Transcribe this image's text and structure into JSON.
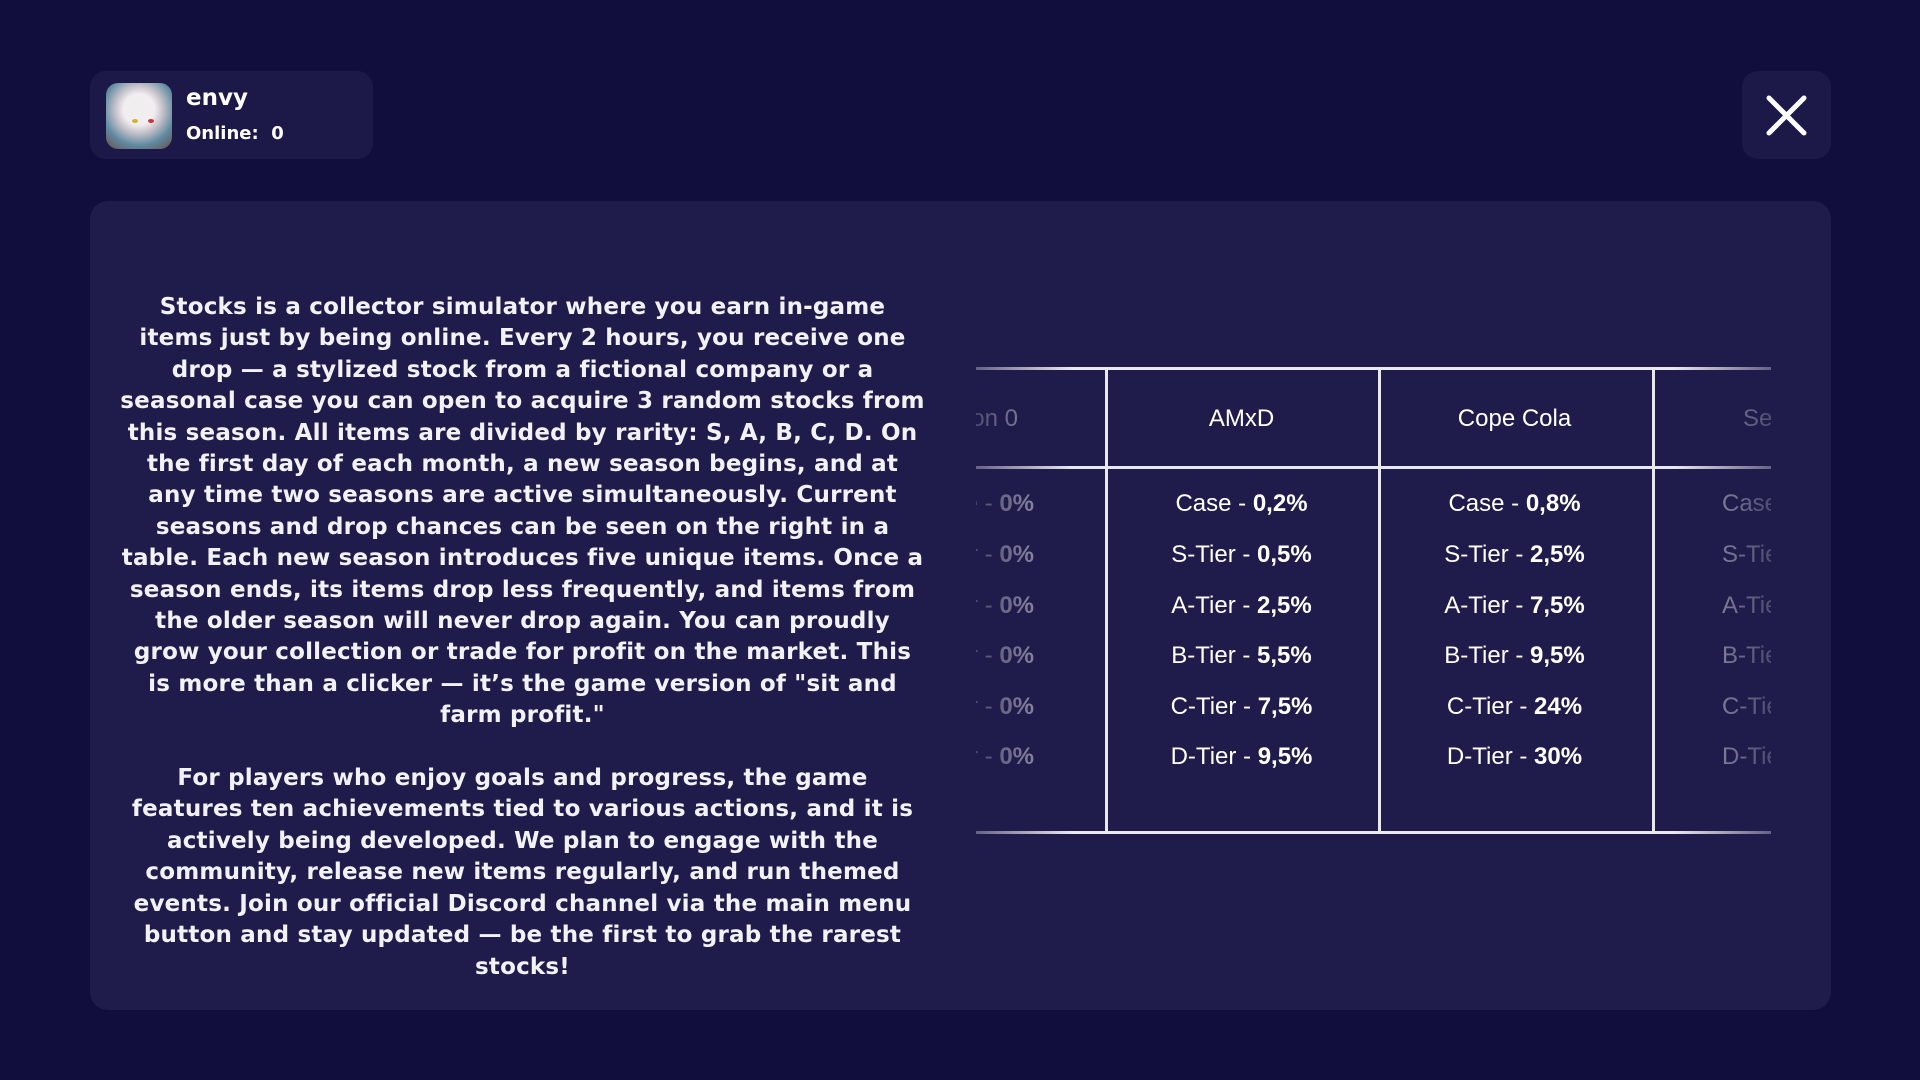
{
  "profile": {
    "name": "envy",
    "online_label": "Online:",
    "online_value": "0",
    "avatar_icon": "anime-avatar"
  },
  "close_icon": "close-x-icon",
  "description": [
    "Stocks is a collector simulator where you earn in-game items just by being online. Every 2 hours, you receive one drop — a stylized stock from a fictional company or a seasonal case you can open to acquire 3 random stocks from this season. All items are divided by rarity: S, A, B, C, D. On the first day of each month, a new season begins, and at any time two seasons are active simultaneously. Current seasons and drop chances can be seen on the right in a table. Each new season introduces five unique items. Once a season ends, its items drop less frequently, and items from the older season will never drop again. You can proudly grow your collection or trade for profit on the market. This is more than a clicker — it’s the game version of \"sit and farm profit.\"",
    "For players who enjoy goals and progress, the game features ten achievements tied to various actions, and it is actively being developed. We plan to engage with the community, release new items regularly, and run themed events. Join our official Discord channel via the main menu button and stay updated — be the first to grab the rarest stocks!"
  ],
  "table": {
    "columns": [
      {
        "header": "on 0",
        "rows": [
          [
            "e - ",
            "0%"
          ],
          [
            "r - ",
            "0%"
          ],
          [
            "r - ",
            "0%"
          ],
          [
            "r - ",
            "0%"
          ],
          [
            "r - ",
            "0%"
          ],
          [
            "r - ",
            "0%"
          ]
        ]
      },
      {
        "header": "AMxD",
        "rows": [
          [
            "Case - ",
            "0,2%"
          ],
          [
            "S-Tier - ",
            "0,5%"
          ],
          [
            "A-Tier - ",
            "2,5%"
          ],
          [
            "B-Tier - ",
            "5,5%"
          ],
          [
            "C-Tier - ",
            "7,5%"
          ],
          [
            "D-Tier - ",
            "9,5%"
          ]
        ]
      },
      {
        "header": "Cope Cola",
        "rows": [
          [
            "Case - ",
            "0,8%"
          ],
          [
            "S-Tier - ",
            "2,5%"
          ],
          [
            "A-Tier - ",
            "7,5%"
          ],
          [
            "B-Tier - ",
            "9,5%"
          ],
          [
            "C-Tier - ",
            "24%"
          ],
          [
            "D-Tier - ",
            "30%"
          ]
        ]
      },
      {
        "header": "Se",
        "rows": [
          [
            "Case",
            ""
          ],
          [
            "S-Tie",
            ""
          ],
          [
            "A-Tie",
            ""
          ],
          [
            "B-Tie",
            ""
          ],
          [
            "C-Tie",
            ""
          ],
          [
            "D-Tie",
            ""
          ]
        ]
      }
    ]
  }
}
